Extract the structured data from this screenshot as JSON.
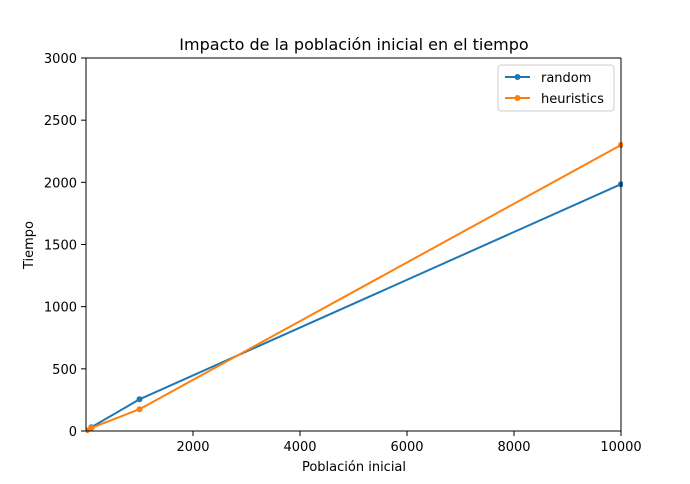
{
  "chart_data": {
    "type": "line",
    "title": "Impacto de la población inicial en el tiempo",
    "xlabel": "Población inicial",
    "ylabel": "Tiempo",
    "xlim": [
      0,
      10000
    ],
    "ylim": [
      0,
      3000
    ],
    "x_ticks": [
      2000,
      4000,
      6000,
      8000,
      10000
    ],
    "x_tick_labels": [
      "2000",
      "4000",
      "6000",
      "8000",
      "10000"
    ],
    "y_ticks": [
      0,
      500,
      1000,
      1500,
      2000,
      2500,
      3000
    ],
    "y_tick_labels": [
      "0",
      "500",
      "1000",
      "1500",
      "2000",
      "2500",
      "3000"
    ],
    "grid": false,
    "legend_position": "top-right",
    "series": [
      {
        "name": "random",
        "color": "#1f77b4",
        "x": [
          10,
          100,
          1000,
          10000
        ],
        "y": [
          5,
          30,
          255,
          1985
        ]
      },
      {
        "name": "heuristics",
        "color": "#ff7f0e",
        "x": [
          10,
          100,
          1000,
          10000
        ],
        "y": [
          5,
          25,
          175,
          2300
        ]
      }
    ]
  }
}
